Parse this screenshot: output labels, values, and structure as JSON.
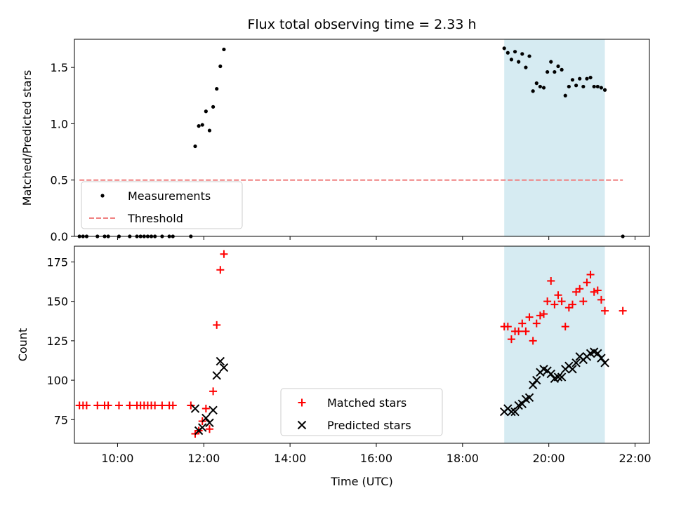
{
  "chart_data": [
    {
      "type": "scatter",
      "title": "Flux total observing time = 2.33 h",
      "xlabel": "",
      "ylabel": "Matched/Predicted stars",
      "xlim": [
        "09:00",
        "22:20"
      ],
      "ylim": [
        0,
        1.75
      ],
      "yticks": [
        "0.0",
        "0.5",
        "1.0",
        "1.5"
      ],
      "shaded_region": {
        "x": [
          "18:58",
          "21:18"
        ],
        "color": "#add8e6"
      },
      "legend_location": "lower-left",
      "series": [
        {
          "name": "Measurements",
          "marker": "dot",
          "color": "#000000",
          "points": [
            [
              "09:07",
              0
            ],
            [
              "09:12",
              0
            ],
            [
              "09:17",
              0
            ],
            [
              "09:32",
              0
            ],
            [
              "09:42",
              0
            ],
            [
              "09:47",
              0
            ],
            [
              "10:02",
              0
            ],
            [
              "10:17",
              0
            ],
            [
              "10:27",
              0
            ],
            [
              "10:32",
              0
            ],
            [
              "10:37",
              0
            ],
            [
              "10:42",
              0
            ],
            [
              "10:47",
              0
            ],
            [
              "10:52",
              0
            ],
            [
              "11:02",
              0
            ],
            [
              "11:12",
              0
            ],
            [
              "11:17",
              0
            ],
            [
              "11:42",
              0
            ],
            [
              "11:48",
              0.8
            ],
            [
              "11:53",
              0.98
            ],
            [
              "11:58",
              0.99
            ],
            [
              "12:03",
              1.11
            ],
            [
              "12:08",
              0.94
            ],
            [
              "12:13",
              1.15
            ],
            [
              "12:18",
              1.31
            ],
            [
              "12:23",
              1.51
            ],
            [
              "12:28",
              1.66
            ],
            [
              "18:58",
              1.67
            ],
            [
              "19:03",
              1.63
            ],
            [
              "19:08",
              1.57
            ],
            [
              "19:13",
              1.64
            ],
            [
              "19:18",
              1.55
            ],
            [
              "19:23",
              1.62
            ],
            [
              "19:28",
              1.5
            ],
            [
              "19:33",
              1.6
            ],
            [
              "19:38",
              1.29
            ],
            [
              "19:43",
              1.36
            ],
            [
              "19:48",
              1.33
            ],
            [
              "19:53",
              1.32
            ],
            [
              "19:58",
              1.46
            ],
            [
              "20:03",
              1.55
            ],
            [
              "20:08",
              1.46
            ],
            [
              "20:13",
              1.51
            ],
            [
              "20:18",
              1.48
            ],
            [
              "20:23",
              1.25
            ],
            [
              "20:28",
              1.33
            ],
            [
              "20:33",
              1.39
            ],
            [
              "20:38",
              1.34
            ],
            [
              "20:43",
              1.4
            ],
            [
              "20:48",
              1.33
            ],
            [
              "20:53",
              1.4
            ],
            [
              "20:58",
              1.41
            ],
            [
              "21:03",
              1.33
            ],
            [
              "21:08",
              1.33
            ],
            [
              "21:13",
              1.32
            ],
            [
              "21:18",
              1.3
            ],
            [
              "21:43",
              0
            ]
          ]
        },
        {
          "name": "Threshold",
          "marker": "dashed-line",
          "color": "#f08080",
          "points": [
            [
              "09:07",
              0.5
            ],
            [
              "21:43",
              0.5
            ]
          ]
        }
      ]
    },
    {
      "type": "scatter",
      "title": "",
      "xlabel": "Time (UTC)",
      "ylabel": "Count",
      "xlim": [
        "09:00",
        "22:20"
      ],
      "ylim": [
        60,
        185
      ],
      "yticks": [
        "75",
        "100",
        "125",
        "150",
        "175"
      ],
      "xticks": [
        "10:00",
        "12:00",
        "14:00",
        "16:00",
        "18:00",
        "20:00",
        "22:00"
      ],
      "shaded_region": {
        "x": [
          "18:58",
          "21:18"
        ],
        "color": "#add8e6"
      },
      "legend_location": "lower-center",
      "series": [
        {
          "name": "Matched stars",
          "marker": "plus",
          "color": "#ff0000",
          "points": [
            [
              "09:07",
              84
            ],
            [
              "09:12",
              84
            ],
            [
              "09:17",
              84
            ],
            [
              "09:32",
              84
            ],
            [
              "09:42",
              84
            ],
            [
              "09:47",
              84
            ],
            [
              "10:02",
              84
            ],
            [
              "10:17",
              84
            ],
            [
              "10:27",
              84
            ],
            [
              "10:32",
              84
            ],
            [
              "10:37",
              84
            ],
            [
              "10:42",
              84
            ],
            [
              "10:47",
              84
            ],
            [
              "10:52",
              84
            ],
            [
              "11:02",
              84
            ],
            [
              "11:12",
              84
            ],
            [
              "11:17",
              84
            ],
            [
              "11:42",
              84
            ],
            [
              "11:48",
              66
            ],
            [
              "11:53",
              68
            ],
            [
              "11:58",
              74
            ],
            [
              "12:03",
              82
            ],
            [
              "12:08",
              69
            ],
            [
              "12:13",
              93
            ],
            [
              "12:18",
              135
            ],
            [
              "12:23",
              170
            ],
            [
              "12:28",
              180
            ],
            [
              "18:58",
              134
            ],
            [
              "19:03",
              134
            ],
            [
              "19:08",
              126
            ],
            [
              "19:13",
              131
            ],
            [
              "19:18",
              131
            ],
            [
              "19:23",
              136
            ],
            [
              "19:28",
              131
            ],
            [
              "19:33",
              140
            ],
            [
              "19:38",
              125
            ],
            [
              "19:43",
              136
            ],
            [
              "19:48",
              141
            ],
            [
              "19:53",
              142
            ],
            [
              "19:58",
              150
            ],
            [
              "20:03",
              163
            ],
            [
              "20:08",
              148
            ],
            [
              "20:13",
              154
            ],
            [
              "20:18",
              150
            ],
            [
              "20:23",
              134
            ],
            [
              "20:28",
              146
            ],
            [
              "20:33",
              148
            ],
            [
              "20:38",
              156
            ],
            [
              "20:43",
              158
            ],
            [
              "20:48",
              150
            ],
            [
              "20:53",
              162
            ],
            [
              "20:58",
              167
            ],
            [
              "21:03",
              156
            ],
            [
              "21:08",
              157
            ],
            [
              "21:13",
              151
            ],
            [
              "21:18",
              144
            ],
            [
              "21:43",
              144
            ]
          ]
        },
        {
          "name": "Predicted stars",
          "marker": "x",
          "color": "#000000",
          "points": [
            [
              "11:48",
              82
            ],
            [
              "11:53",
              68
            ],
            [
              "11:58",
              70
            ],
            [
              "12:03",
              76
            ],
            [
              "12:08",
              73
            ],
            [
              "12:13",
              81
            ],
            [
              "12:18",
              103
            ],
            [
              "12:23",
              112
            ],
            [
              "12:28",
              108
            ],
            [
              "18:58",
              80
            ],
            [
              "19:03",
              82
            ],
            [
              "19:08",
              80
            ],
            [
              "19:13",
              80
            ],
            [
              "19:18",
              84
            ],
            [
              "19:23",
              85
            ],
            [
              "19:28",
              88
            ],
            [
              "19:33",
              89
            ],
            [
              "19:38",
              97
            ],
            [
              "19:43",
              100
            ],
            [
              "19:48",
              105
            ],
            [
              "19:53",
              107
            ],
            [
              "19:58",
              106
            ],
            [
              "20:03",
              104
            ],
            [
              "20:08",
              101
            ],
            [
              "20:13",
              102
            ],
            [
              "20:18",
              102
            ],
            [
              "20:23",
              107
            ],
            [
              "20:28",
              109
            ],
            [
              "20:33",
              107
            ],
            [
              "20:38",
              111
            ],
            [
              "20:43",
              115
            ],
            [
              "20:48",
              113
            ],
            [
              "20:53",
              115
            ],
            [
              "20:58",
              117
            ],
            [
              "21:03",
              118
            ],
            [
              "21:08",
              117
            ],
            [
              "21:13",
              114
            ],
            [
              "21:18",
              111
            ]
          ]
        }
      ]
    }
  ]
}
